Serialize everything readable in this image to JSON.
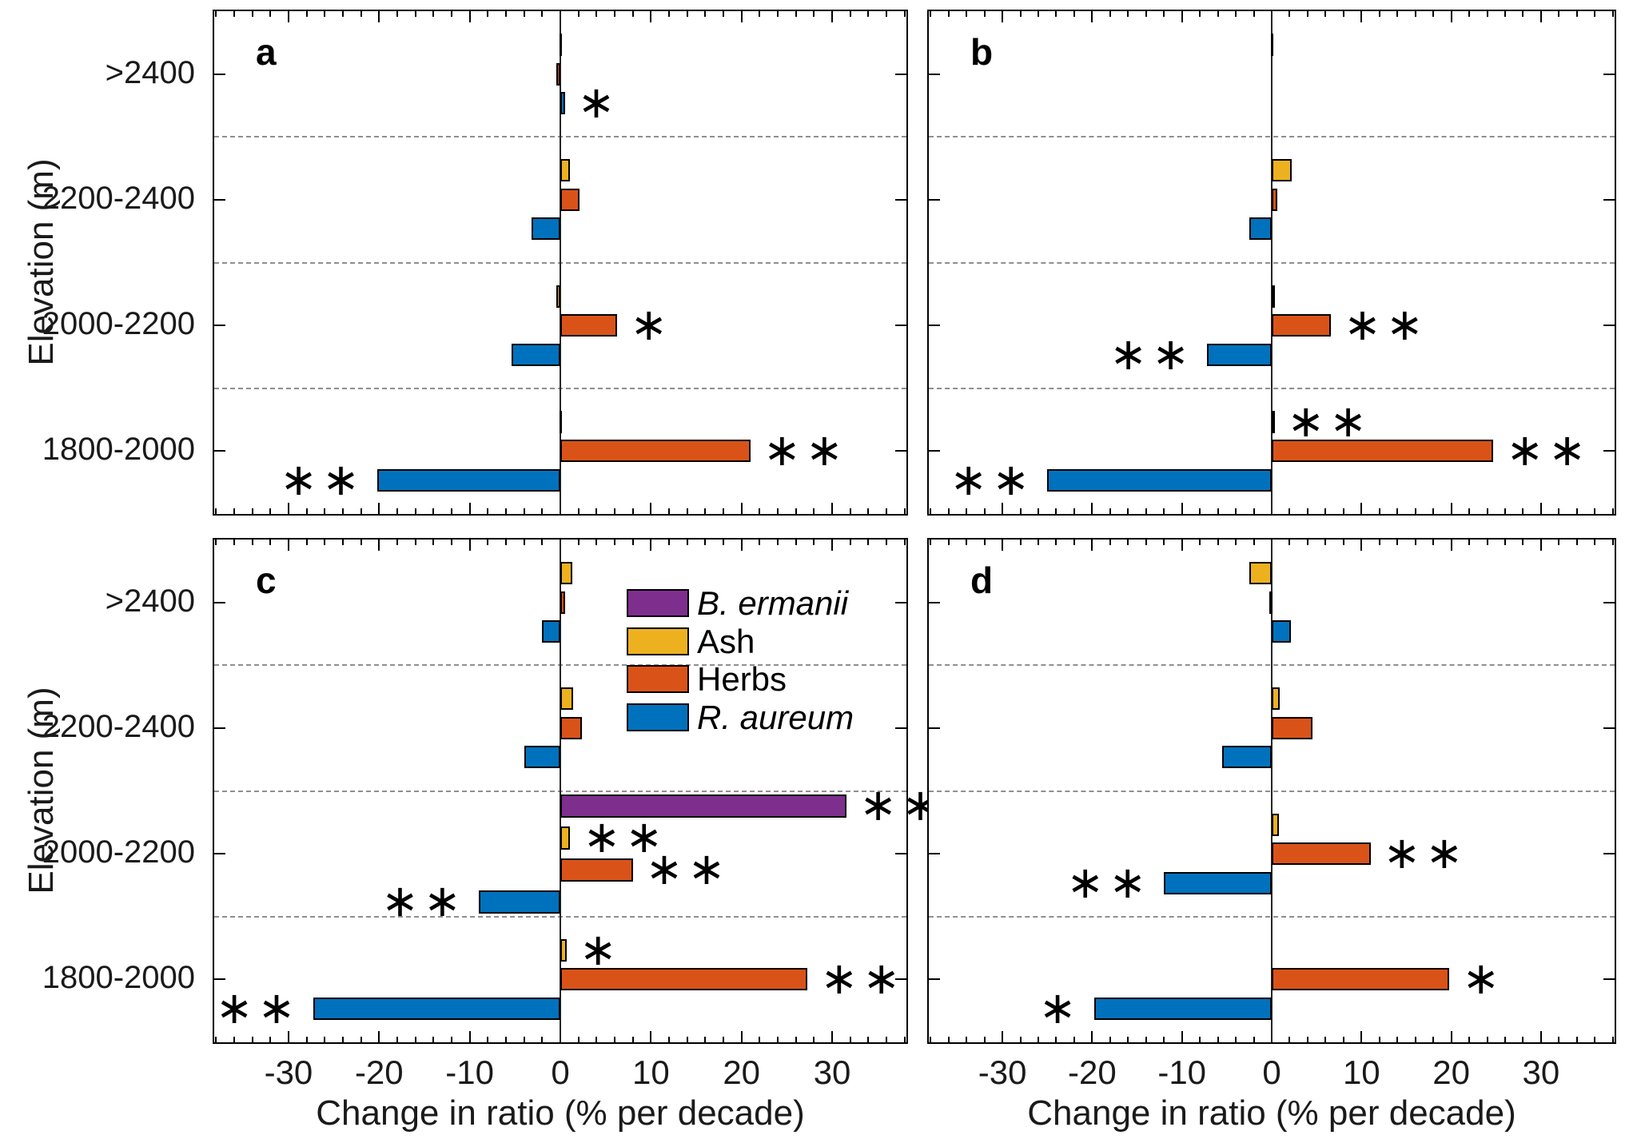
{
  "chart_data": {
    "type": "bar",
    "orientation": "horizontal",
    "xlabel": "Change in ratio (% per decade)",
    "ylabel": "Elevation (m)",
    "xlim": [
      -38.2,
      38.2
    ],
    "x_ticks": [
      -30,
      -20,
      -10,
      0,
      10,
      20,
      30
    ],
    "x_minor_tick_step": 2,
    "grid": "dashed horizontal band dividers",
    "categories": [
      ">2400",
      "2200-2400",
      "2000-2200",
      "1800-2000"
    ],
    "legend": [
      {
        "label": "B. ermanii",
        "color": "#7E2F8E",
        "italic": true
      },
      {
        "label": "Ash",
        "color": "#EDB120",
        "italic": false
      },
      {
        "label": "Herbs",
        "color": "#D95319",
        "italic": false
      },
      {
        "label": "R. aureum",
        "color": "#0072BD",
        "italic": true
      }
    ],
    "legend_position": "inside panel c, upper right",
    "significance_note": "* and ** mark significant bars",
    "panels": [
      {
        "id": "a",
        "label": "a",
        "groups": [
          {
            "elevation": ">2400",
            "bars": [
              {
                "species": "Ash",
                "value": -0.2,
                "sig": ""
              },
              {
                "species": "Herbs",
                "value": -0.4,
                "sig": ""
              },
              {
                "species": "R. aureum",
                "value": 0.5,
                "sig": "*"
              }
            ]
          },
          {
            "elevation": "2200-2400",
            "bars": [
              {
                "species": "Ash",
                "value": 1.1,
                "sig": ""
              },
              {
                "species": "Herbs",
                "value": 2.1,
                "sig": ""
              },
              {
                "species": "R. aureum",
                "value": -3.2,
                "sig": ""
              }
            ]
          },
          {
            "elevation": "2000-2200",
            "bars": [
              {
                "species": "Ash",
                "value": -0.4,
                "sig": ""
              },
              {
                "species": "Herbs",
                "value": 6.3,
                "sig": "*"
              },
              {
                "species": "R. aureum",
                "value": -5.4,
                "sig": ""
              }
            ]
          },
          {
            "elevation": "1800-2000",
            "bars": [
              {
                "species": "Ash",
                "value": 0.2,
                "sig": ""
              },
              {
                "species": "Herbs",
                "value": 21.0,
                "sig": "**"
              },
              {
                "species": "R. aureum",
                "value": -20.2,
                "sig": "**"
              }
            ]
          }
        ]
      },
      {
        "id": "b",
        "label": "b",
        "groups": [
          {
            "elevation": ">2400",
            "bars": [
              {
                "species": "Ash",
                "value": 0.15,
                "sig": ""
              },
              {
                "species": "Herbs",
                "value": 0,
                "sig": ""
              },
              {
                "species": "R. aureum",
                "value": 0,
                "sig": ""
              }
            ]
          },
          {
            "elevation": "2200-2400",
            "bars": [
              {
                "species": "Ash",
                "value": 2.2,
                "sig": ""
              },
              {
                "species": "Herbs",
                "value": 0.6,
                "sig": ""
              },
              {
                "species": "R. aureum",
                "value": -2.5,
                "sig": ""
              }
            ]
          },
          {
            "elevation": "2000-2200",
            "bars": [
              {
                "species": "Ash",
                "value": 0.3,
                "sig": ""
              },
              {
                "species": "Herbs",
                "value": 6.6,
                "sig": "**"
              },
              {
                "species": "R. aureum",
                "value": -7.2,
                "sig": "**"
              }
            ]
          },
          {
            "elevation": "1800-2000",
            "bars": [
              {
                "species": "Ash",
                "value": 0.3,
                "sig": "**"
              },
              {
                "species": "Herbs",
                "value": 24.7,
                "sig": "**"
              },
              {
                "species": "R. aureum",
                "value": -25.0,
                "sig": "**"
              }
            ]
          }
        ]
      },
      {
        "id": "c",
        "label": "c",
        "groups": [
          {
            "elevation": ">2400",
            "bars": [
              {
                "species": "Ash",
                "value": 1.3,
                "sig": ""
              },
              {
                "species": "Herbs",
                "value": 0.5,
                "sig": ""
              },
              {
                "species": "R. aureum",
                "value": -2.0,
                "sig": ""
              }
            ]
          },
          {
            "elevation": "2200-2400",
            "bars": [
              {
                "species": "Ash",
                "value": 1.4,
                "sig": ""
              },
              {
                "species": "Herbs",
                "value": 2.4,
                "sig": ""
              },
              {
                "species": "R. aureum",
                "value": -4.0,
                "sig": ""
              }
            ]
          },
          {
            "elevation": "2000-2200",
            "bars": [
              {
                "species": "B. ermanii",
                "value": 31.6,
                "sig": "**"
              },
              {
                "species": "Ash",
                "value": 1.1,
                "sig": "**"
              },
              {
                "species": "Herbs",
                "value": 8.0,
                "sig": "**"
              },
              {
                "species": "R. aureum",
                "value": -9.0,
                "sig": "**"
              }
            ]
          },
          {
            "elevation": "1800-2000",
            "bars": [
              {
                "species": "Ash",
                "value": 0.7,
                "sig": "*"
              },
              {
                "species": "Herbs",
                "value": 27.3,
                "sig": "**"
              },
              {
                "species": "R. aureum",
                "value": -27.3,
                "sig": "**"
              }
            ]
          }
        ]
      },
      {
        "id": "d",
        "label": "d",
        "groups": [
          {
            "elevation": ">2400",
            "bars": [
              {
                "species": "Ash",
                "value": -2.5,
                "sig": ""
              },
              {
                "species": "Herbs",
                "value": -0.3,
                "sig": ""
              },
              {
                "species": "R. aureum",
                "value": 2.1,
                "sig": ""
              }
            ]
          },
          {
            "elevation": "2200-2400",
            "bars": [
              {
                "species": "Ash",
                "value": 0.9,
                "sig": ""
              },
              {
                "species": "Herbs",
                "value": 4.5,
                "sig": ""
              },
              {
                "species": "R. aureum",
                "value": -5.5,
                "sig": ""
              }
            ]
          },
          {
            "elevation": "2000-2200",
            "bars": [
              {
                "species": "Ash",
                "value": 0.8,
                "sig": ""
              },
              {
                "species": "Herbs",
                "value": 11.0,
                "sig": "**"
              },
              {
                "species": "R. aureum",
                "value": -12.0,
                "sig": "**"
              }
            ]
          },
          {
            "elevation": "1800-2000",
            "bars": [
              {
                "species": "Ash",
                "value": 0,
                "sig": ""
              },
              {
                "species": "Herbs",
                "value": 19.8,
                "sig": "*"
              },
              {
                "species": "R. aureum",
                "value": -19.8,
                "sig": "*"
              }
            ]
          }
        ]
      }
    ]
  }
}
